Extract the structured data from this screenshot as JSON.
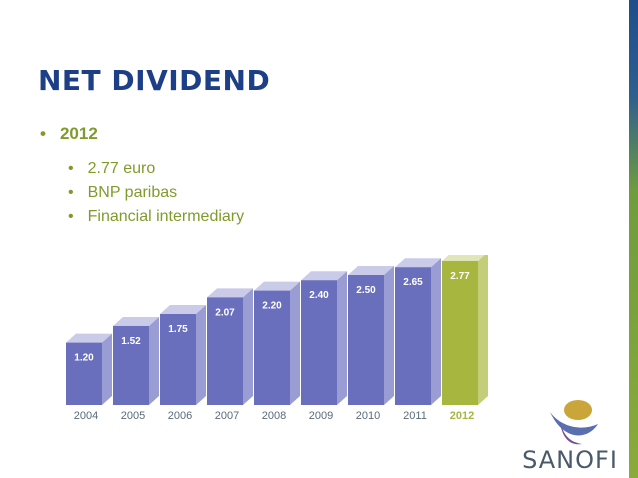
{
  "slide": {
    "title": "NET DIVIDEND",
    "bullet": "2012",
    "sub_bullets": [
      "2.77 euro",
      "BNP paribas",
      "Financial intermediary"
    ],
    "logo_text": "SANOFI"
  },
  "colors": {
    "title": "#1c3f87",
    "bullet_text": "#7f9b2c",
    "bar_front": "#6a6fbd",
    "bar_top": "#c9cbe8",
    "bar_side": "#9a9dd3",
    "highlight_front": "#a6b63e",
    "highlight_top": "#e1e6b8",
    "highlight_side": "#c3cd7a"
  },
  "chart_data": {
    "type": "bar",
    "categories": [
      "2004",
      "2005",
      "2006",
      "2007",
      "2008",
      "2009",
      "2010",
      "2011",
      "2012"
    ],
    "values": [
      1.2,
      1.52,
      1.75,
      2.07,
      2.2,
      2.4,
      2.5,
      2.65,
      2.77
    ],
    "labels": [
      "1.20",
      "1.52",
      "1.75",
      "2.07",
      "2.20",
      "2.40",
      "2.50",
      "2.65",
      "2.77"
    ],
    "highlight": "2012",
    "title": "",
    "xlabel": "",
    "ylabel": ""
  }
}
